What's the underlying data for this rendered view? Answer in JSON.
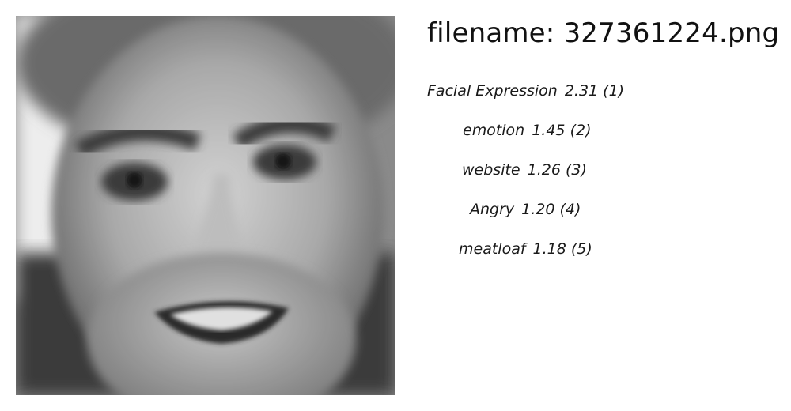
{
  "filename_label": "filename: 327361224.png",
  "predictions": [
    {
      "label": "Facial Expression",
      "score": "2.31",
      "rank": "(1)"
    },
    {
      "label": "emotion",
      "score": "1.45",
      "rank": "(2)"
    },
    {
      "label": "website",
      "score": "1.26",
      "rank": "(3)"
    },
    {
      "label": "Angry",
      "score": "1.20",
      "rank": "(4)"
    },
    {
      "label": "meatloaf",
      "score": "1.18",
      "rank": "(5)"
    }
  ]
}
